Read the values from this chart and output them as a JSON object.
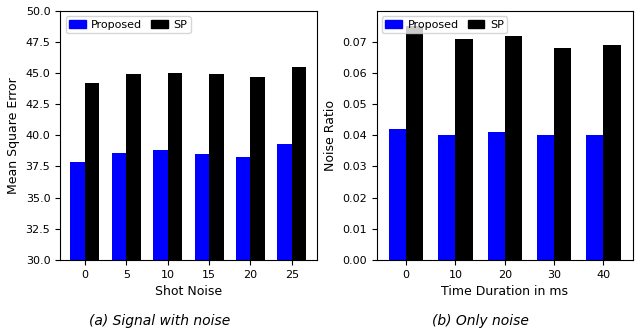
{
  "left_chart": {
    "categories": [
      0,
      5,
      10,
      15,
      20,
      25
    ],
    "proposed_values": [
      37.9,
      38.6,
      38.8,
      38.5,
      38.3,
      39.3
    ],
    "sp_values": [
      44.2,
      44.9,
      45.0,
      44.9,
      44.7,
      45.5
    ],
    "ylabel": "Mean Square Error",
    "xlabel": "Shot Noise",
    "ylim": [
      30.0,
      50.0
    ],
    "ybase": 30.0,
    "yticks": [
      30.0,
      32.5,
      35.0,
      37.5,
      40.0,
      42.5,
      45.0,
      47.5,
      50.0
    ],
    "subtitle": "(a) Signal with noise"
  },
  "right_chart": {
    "categories": [
      0,
      10,
      20,
      30,
      40
    ],
    "proposed_values": [
      0.042,
      0.04,
      0.041,
      0.04,
      0.04
    ],
    "sp_values": [
      0.075,
      0.071,
      0.072,
      0.068,
      0.069
    ],
    "ylabel": "Noise Ratio",
    "xlabel": "Time Duration in ms",
    "ylim": [
      0.0,
      0.08
    ],
    "ybase": 0.0,
    "yticks": [
      0.0,
      0.01,
      0.02,
      0.03,
      0.04,
      0.05,
      0.06,
      0.07
    ],
    "subtitle": "(b) Only noise"
  },
  "proposed_color": "#0000ff",
  "sp_color": "#000000",
  "bar_width": 0.35,
  "legend_labels": [
    "Proposed",
    "SP"
  ]
}
